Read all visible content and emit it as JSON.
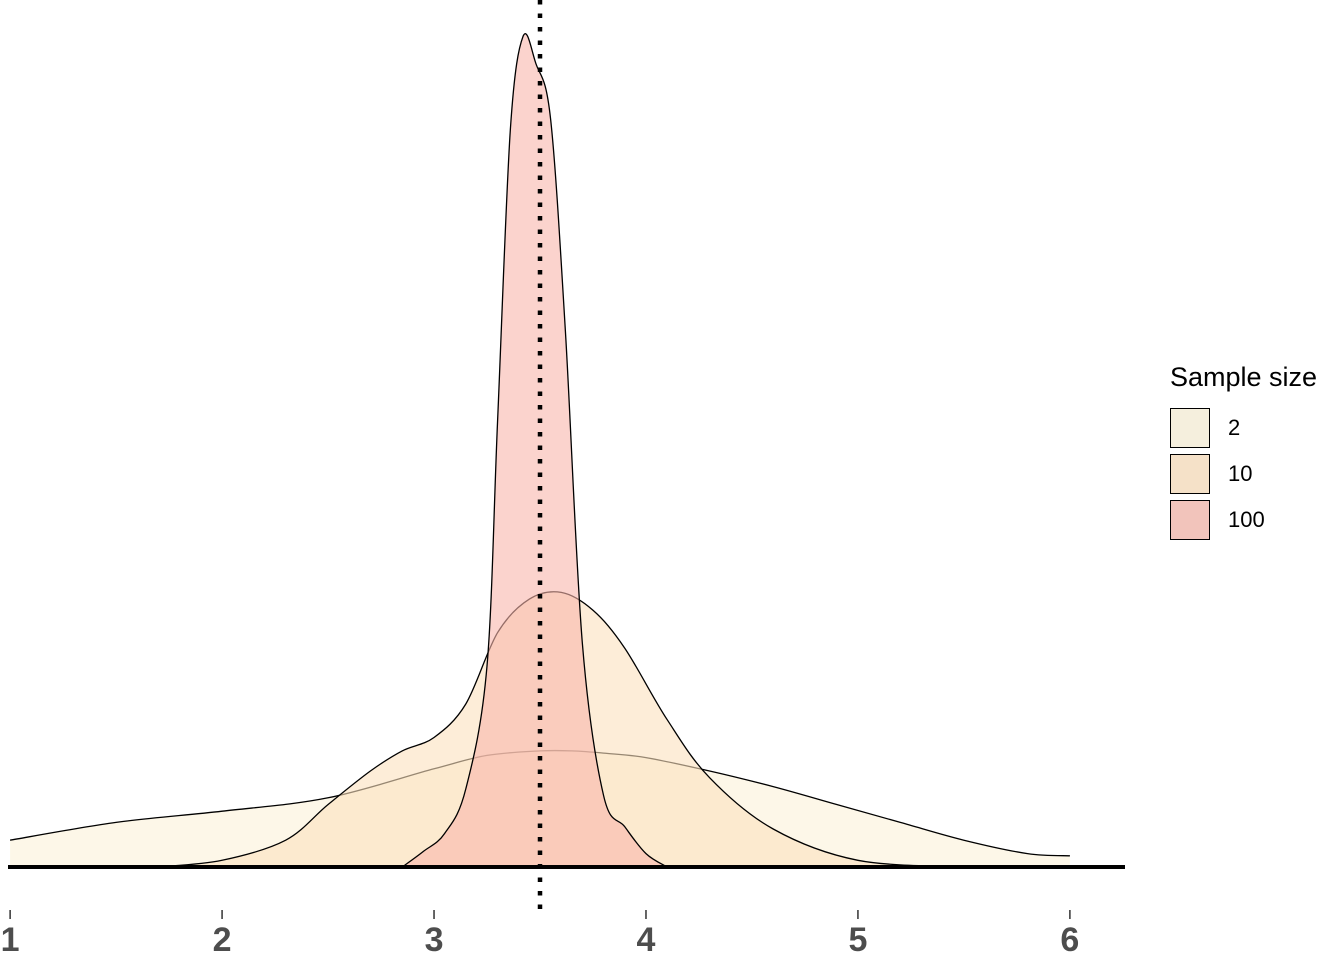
{
  "chart_data": {
    "type": "area",
    "subtype": "density",
    "title": "",
    "xlabel": "",
    "ylabel": "",
    "xlim": [
      0.99,
      6.26
    ],
    "ylim": [
      0,
      3.7
    ],
    "x_ticks": [
      "1",
      "2",
      "3",
      "4",
      "5",
      "6"
    ],
    "reference_line": {
      "x": 3.5,
      "style": "dotted"
    },
    "legend": {
      "title": "Sample size",
      "position": "right"
    },
    "series": [
      {
        "name": "2",
        "fill": "#FBF1D8",
        "key_fill": "#F5EFDD",
        "x": [
          1.0,
          1.5,
          2.0,
          2.5,
          3.0,
          3.25,
          3.5,
          3.65,
          3.8,
          4.0,
          4.3,
          4.6,
          4.9,
          5.2,
          5.5,
          5.8,
          6.0
        ],
        "y": [
          0.12,
          0.2,
          0.25,
          0.31,
          0.44,
          0.5,
          0.52,
          0.52,
          0.51,
          0.49,
          0.43,
          0.36,
          0.28,
          0.2,
          0.12,
          0.06,
          0.05
        ]
      },
      {
        "name": "10",
        "fill": "#FBE1BE",
        "key_fill": "#F5E1C8",
        "x": [
          1.7,
          2.0,
          2.3,
          2.5,
          2.7,
          2.85,
          3.0,
          3.15,
          3.3,
          3.45,
          3.6,
          3.75,
          3.9,
          4.1,
          4.3,
          4.6,
          5.0,
          5.5
        ],
        "y": [
          0.0,
          0.03,
          0.12,
          0.28,
          0.43,
          0.52,
          0.58,
          0.73,
          1.05,
          1.2,
          1.23,
          1.15,
          0.98,
          0.66,
          0.4,
          0.17,
          0.03,
          0.0
        ]
      },
      {
        "name": "100",
        "fill": "#F9B6AB",
        "key_fill": "#F2C4BB",
        "x": [
          2.85,
          2.95,
          3.05,
          3.15,
          3.25,
          3.3,
          3.36,
          3.42,
          3.48,
          3.55,
          3.62,
          3.7,
          3.8,
          3.9,
          4.0,
          4.1
        ],
        "y": [
          0.0,
          0.07,
          0.15,
          0.35,
          0.9,
          2.0,
          3.3,
          3.72,
          3.6,
          3.35,
          2.4,
          1.0,
          0.32,
          0.18,
          0.06,
          0.0
        ]
      }
    ]
  }
}
